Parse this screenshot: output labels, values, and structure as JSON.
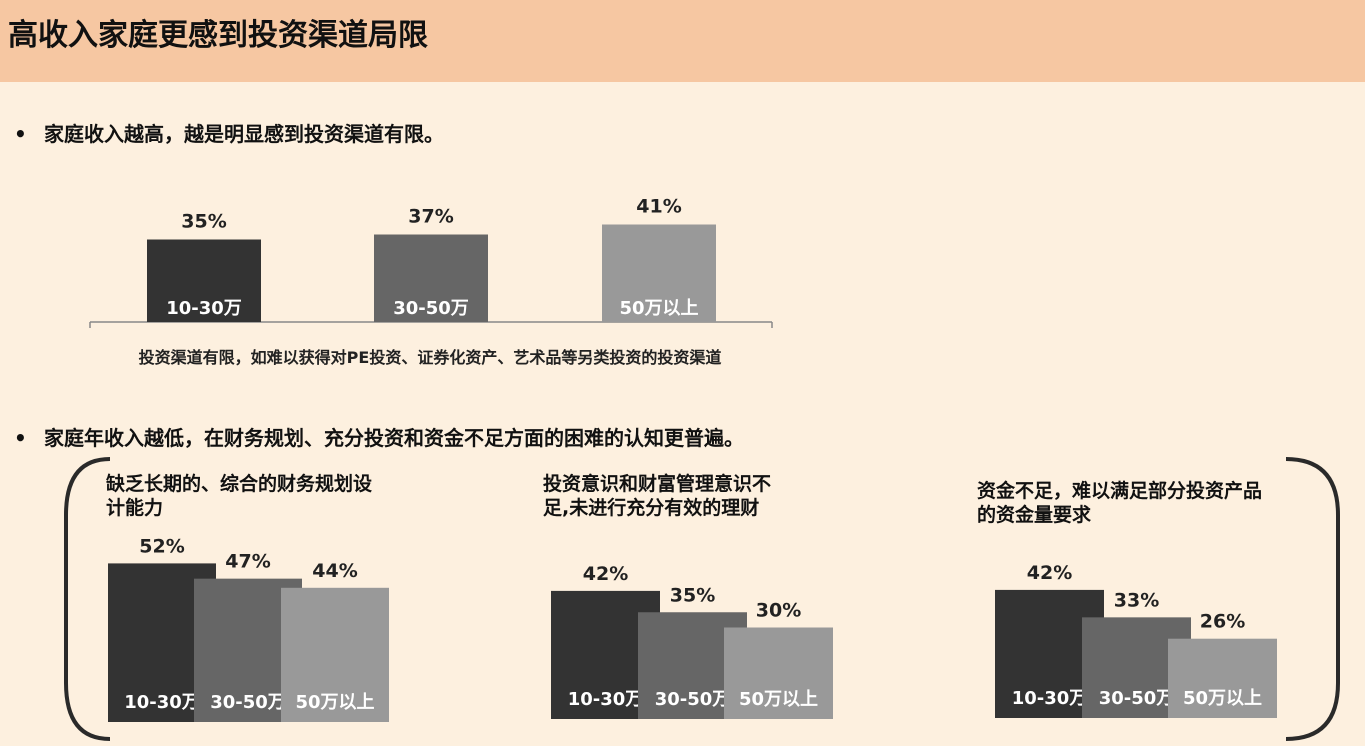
{
  "header": {
    "title": "高收入家庭更感到投资渠道局限"
  },
  "bullets": [
    {
      "dot": "•",
      "text": "家庭收入越高，越是明显感到投资渠道有限。"
    },
    {
      "dot": "•",
      "text": "家庭年收入越低，在财务规划、充分投资和资金不足方面的困难的认知更普遍。"
    }
  ],
  "colors": [
    "#333333",
    "#666666",
    "#999999"
  ],
  "chart_data": [
    {
      "type": "bar",
      "categories": [
        "10-30万",
        "30-50万",
        "50万以上"
      ],
      "values": [
        35,
        37,
        41
      ],
      "value_labels": [
        "35%",
        "37%",
        "41%"
      ],
      "xlabel": "投资渠道有限，如难以获得对PE投资、证券化资产、艺术品等另类投资的投资渠道"
    },
    {
      "type": "bar",
      "title": "缺乏长期的、综合的财务规划设\n计能力",
      "categories": [
        "10-30万",
        "30-50万",
        "50万以上"
      ],
      "values": [
        52,
        47,
        44
      ],
      "value_labels": [
        "52%",
        "47%",
        "44%"
      ]
    },
    {
      "type": "bar",
      "title": "投资意识和财富管理意识不\n足,未进行充分有效的理财",
      "categories": [
        "10-30万",
        "30-50万",
        "50万以上"
      ],
      "values": [
        42,
        35,
        30
      ],
      "value_labels": [
        "42%",
        "35%",
        "30%"
      ]
    },
    {
      "type": "bar",
      "title": "资金不足，难以满足部分投资产品\n的资金量要求",
      "categories": [
        "10-30万",
        "30-50万",
        "50万以上"
      ],
      "values": [
        42,
        33,
        26
      ],
      "value_labels": [
        "42%",
        "33%",
        "26%"
      ]
    }
  ]
}
